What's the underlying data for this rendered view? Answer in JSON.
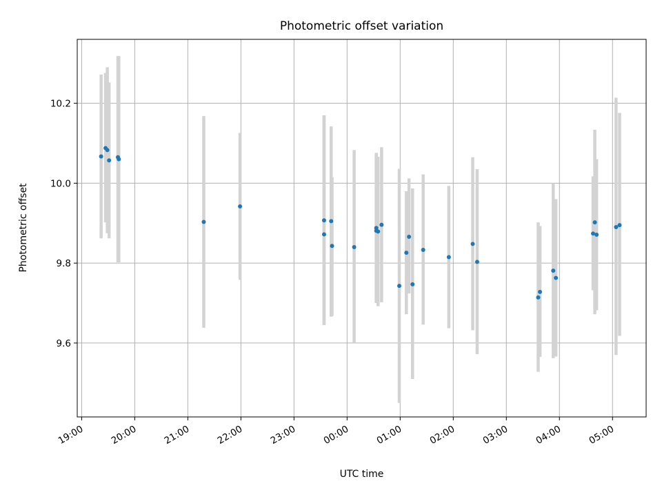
{
  "chart_data": {
    "type": "scatter",
    "title": "Photometric offset variation",
    "xlabel": "UTC time",
    "ylabel": "Photometric offset",
    "xlim": [
      "2000-01-01T18:55",
      "2000-01-02T05:38"
    ],
    "ylim": [
      9.415,
      10.36
    ],
    "grid": true,
    "legend": "none",
    "x_ticks": [
      {
        "t": "2000-01-01T19:00",
        "label": "19:00"
      },
      {
        "t": "2000-01-01T20:00",
        "label": "20:00"
      },
      {
        "t": "2000-01-01T21:00",
        "label": "21:00"
      },
      {
        "t": "2000-01-01T22:00",
        "label": "22:00"
      },
      {
        "t": "2000-01-01T23:00",
        "label": "23:00"
      },
      {
        "t": "2000-01-02T00:00",
        "label": "00:00"
      },
      {
        "t": "2000-01-02T01:00",
        "label": "01:00"
      },
      {
        "t": "2000-01-02T02:00",
        "label": "02:00"
      },
      {
        "t": "2000-01-02T03:00",
        "label": "03:00"
      },
      {
        "t": "2000-01-02T04:00",
        "label": "04:00"
      },
      {
        "t": "2000-01-02T05:00",
        "label": "05:00"
      }
    ],
    "y_ticks": [
      {
        "v": 9.6,
        "label": "9.6"
      },
      {
        "v": 9.8,
        "label": "9.8"
      },
      {
        "v": 10.0,
        "label": "10.0"
      },
      {
        "v": 10.2,
        "label": "10.2"
      }
    ],
    "colors": {
      "point": "#1f77b4",
      "errorbar": "#d3d3d3",
      "grid": "#b0b0b0"
    },
    "series": [
      {
        "points": [
          {
            "t": "2000-01-01T19:22",
            "y": 10.067,
            "ylo": 9.862,
            "yhi": 10.272
          },
          {
            "t": "2000-01-01T19:27",
            "y": 10.088,
            "ylo": 9.902,
            "yhi": 10.276
          },
          {
            "t": "2000-01-01T19:29",
            "y": 10.083,
            "ylo": 9.875,
            "yhi": 10.29
          },
          {
            "t": "2000-01-01T19:31",
            "y": 10.057,
            "ylo": 9.862,
            "yhi": 10.252
          },
          {
            "t": "2000-01-01T19:41",
            "y": 10.065,
            "ylo": 9.802,
            "yhi": 10.318
          },
          {
            "t": "2000-01-01T19:42",
            "y": 10.06,
            "ylo": 9.802,
            "yhi": 10.318
          },
          {
            "t": "2000-01-01T21:18",
            "y": 9.903,
            "ylo": 9.638,
            "yhi": 10.168
          },
          {
            "t": "2000-01-01T21:59",
            "y": 9.942,
            "ylo": 9.758,
            "yhi": 10.126
          },
          {
            "t": "2000-01-01T23:34",
            "y": 9.907,
            "ylo": 9.645,
            "yhi": 10.17
          },
          {
            "t": "2000-01-01T23:34",
            "y": 9.872,
            "ylo": 9.645,
            "yhi": 10.17
          },
          {
            "t": "2000-01-01T23:42",
            "y": 9.905,
            "ylo": 9.666,
            "yhi": 10.142
          },
          {
            "t": "2000-01-01T23:43",
            "y": 9.843,
            "ylo": 9.668,
            "yhi": 10.015
          },
          {
            "t": "2000-01-02T00:08",
            "y": 9.84,
            "ylo": 9.6,
            "yhi": 10.083
          },
          {
            "t": "2000-01-02T00:33",
            "y": 9.888,
            "ylo": 9.7,
            "yhi": 10.076
          },
          {
            "t": "2000-01-02T00:33",
            "y": 9.881,
            "ylo": 9.7,
            "yhi": 10.07
          },
          {
            "t": "2000-01-02T00:35",
            "y": 9.879,
            "ylo": 9.692,
            "yhi": 10.066
          },
          {
            "t": "2000-01-02T00:39",
            "y": 9.896,
            "ylo": 9.702,
            "yhi": 10.09
          },
          {
            "t": "2000-01-02T00:59",
            "y": 9.743,
            "ylo": 9.45,
            "yhi": 10.036
          },
          {
            "t": "2000-01-02T01:07",
            "y": 9.826,
            "ylo": 9.672,
            "yhi": 9.98
          },
          {
            "t": "2000-01-02T01:10",
            "y": 9.866,
            "ylo": 9.724,
            "yhi": 10.012
          },
          {
            "t": "2000-01-02T01:14",
            "y": 9.747,
            "ylo": 9.51,
            "yhi": 9.987
          },
          {
            "t": "2000-01-02T01:26",
            "y": 9.833,
            "ylo": 9.646,
            "yhi": 10.022
          },
          {
            "t": "2000-01-02T01:55",
            "y": 9.815,
            "ylo": 9.637,
            "yhi": 9.993
          },
          {
            "t": "2000-01-02T02:22",
            "y": 9.848,
            "ylo": 9.632,
            "yhi": 10.065
          },
          {
            "t": "2000-01-02T02:27",
            "y": 9.803,
            "ylo": 9.572,
            "yhi": 10.035
          },
          {
            "t": "2000-01-02T03:36",
            "y": 9.714,
            "ylo": 9.528,
            "yhi": 9.902
          },
          {
            "t": "2000-01-02T03:38",
            "y": 9.728,
            "ylo": 9.565,
            "yhi": 9.893
          },
          {
            "t": "2000-01-02T03:53",
            "y": 9.781,
            "ylo": 9.562,
            "yhi": 10.0
          },
          {
            "t": "2000-01-02T03:56",
            "y": 9.763,
            "ylo": 9.566,
            "yhi": 9.96
          },
          {
            "t": "2000-01-02T04:38",
            "y": 9.874,
            "ylo": 9.732,
            "yhi": 10.017
          },
          {
            "t": "2000-01-02T04:40",
            "y": 9.902,
            "ylo": 9.672,
            "yhi": 10.134
          },
          {
            "t": "2000-01-02T04:42",
            "y": 9.871,
            "ylo": 9.682,
            "yhi": 10.06
          },
          {
            "t": "2000-01-02T05:04",
            "y": 9.89,
            "ylo": 9.57,
            "yhi": 10.214
          },
          {
            "t": "2000-01-02T05:08",
            "y": 9.895,
            "ylo": 9.618,
            "yhi": 10.176
          }
        ]
      }
    ]
  }
}
